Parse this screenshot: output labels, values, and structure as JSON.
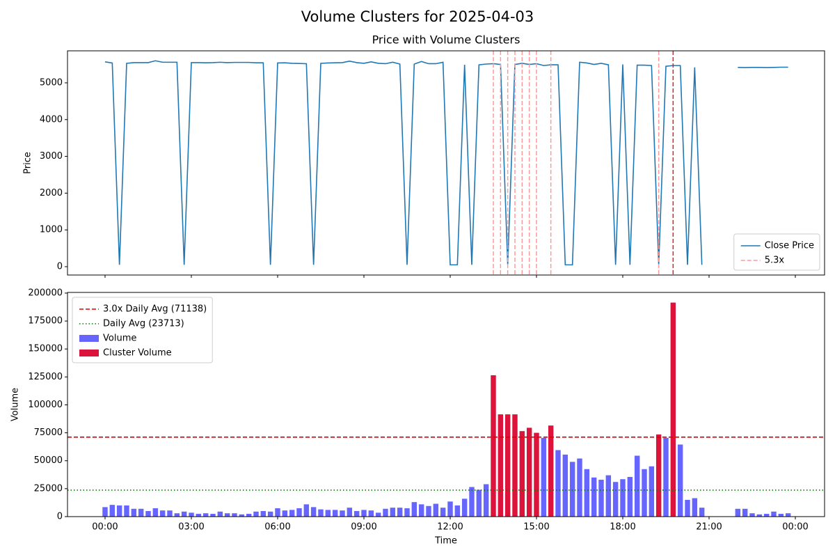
{
  "title": "Volume Clusters for 2025-04-03",
  "chart_data": [
    {
      "type": "line",
      "title": "Price with Volume Clusters",
      "y_label": "Price",
      "x": [
        0,
        0.25,
        0.5,
        0.75,
        1,
        1.25,
        1.5,
        1.75,
        2,
        2.25,
        2.5,
        2.75,
        3,
        3.25,
        3.5,
        3.75,
        4,
        4.25,
        4.5,
        4.75,
        5,
        5.25,
        5.5,
        5.75,
        6,
        6.25,
        6.5,
        6.75,
        7,
        7.25,
        7.5,
        7.75,
        8,
        8.25,
        8.5,
        8.75,
        9,
        9.25,
        9.5,
        9.75,
        10,
        10.25,
        10.5,
        10.75,
        11,
        11.25,
        11.5,
        11.75,
        12,
        12.25,
        12.5,
        12.75,
        13,
        13.25,
        13.5,
        13.75,
        14,
        14.25,
        14.5,
        14.75,
        15,
        15.25,
        15.5,
        15.75,
        16,
        16.25,
        16.5,
        16.75,
        17,
        17.25,
        17.5,
        17.75,
        18,
        18.25,
        18.5,
        18.75,
        19,
        19.25,
        19.5,
        19.75,
        20,
        20.25,
        20.5,
        20.75,
        21,
        21.25,
        21.5,
        21.75,
        22,
        22.25,
        22.5,
        22.75,
        23,
        23.25,
        23.5,
        23.75
      ],
      "series": [
        {
          "name": "Close Price",
          "color": "#1f77b4",
          "values": [
            5570,
            5540,
            50,
            5530,
            5550,
            5550,
            5550,
            5600,
            5560,
            5560,
            5560,
            50,
            5550,
            5550,
            5545,
            5550,
            5560,
            5550,
            5555,
            5555,
            5555,
            5545,
            5545,
            50,
            5540,
            5545,
            5530,
            5525,
            5520,
            50,
            5530,
            5540,
            5545,
            5550,
            5590,
            5550,
            5530,
            5570,
            5530,
            5520,
            5560,
            5510,
            50,
            5510,
            5580,
            5520,
            5520,
            5560,
            50,
            50,
            5490,
            50,
            5490,
            5510,
            5520,
            5500,
            50,
            5500,
            5530,
            5500,
            5520,
            5470,
            5490,
            5490,
            50,
            50,
            5560,
            5540,
            5500,
            5530,
            5490,
            50,
            5500,
            50,
            5480,
            5480,
            5470,
            50,
            5450,
            5470,
            5470,
            50,
            5420,
            50,
            null,
            null,
            null,
            null,
            5420,
            5415,
            5420,
            5420,
            5415,
            5420,
            5425,
            5425
          ]
        }
      ],
      "vlines": {
        "name": "5.3x",
        "x": [
          13.5,
          13.75,
          14,
          14.25,
          14.5,
          14.75,
          15,
          15.5,
          19.25,
          19.75
        ],
        "colors": [
          "#ff9999",
          "#ff9999",
          "#ff9999",
          "#ff9999",
          "#ff9999",
          "#ff9999",
          "#ff9999",
          "#ff9999",
          "#ff9999",
          "#e02020"
        ]
      },
      "xlim": [
        -1.306,
        25.016
      ],
      "ylim": [
        -227,
        5870
      ],
      "xticks": [
        0,
        3,
        6,
        9,
        12,
        15,
        18,
        21,
        24
      ],
      "yticks": [
        0,
        1000,
        2000,
        3000,
        4000,
        5000
      ],
      "legend": "lower right"
    },
    {
      "type": "bar",
      "x_label": "Time",
      "y_label": "Volume",
      "x": [
        0,
        0.25,
        0.5,
        0.75,
        1,
        1.25,
        1.5,
        1.75,
        2,
        2.25,
        2.5,
        2.75,
        3,
        3.25,
        3.5,
        3.75,
        4,
        4.25,
        4.5,
        4.75,
        5,
        5.25,
        5.5,
        5.75,
        6,
        6.25,
        6.5,
        6.75,
        7,
        7.25,
        7.5,
        7.75,
        8,
        8.25,
        8.5,
        8.75,
        9,
        9.25,
        9.5,
        9.75,
        10,
        10.25,
        10.5,
        10.75,
        11,
        11.25,
        11.5,
        11.75,
        12,
        12.25,
        12.5,
        12.75,
        13,
        13.25,
        13.5,
        13.75,
        14,
        14.25,
        14.5,
        14.75,
        15,
        15.25,
        15.5,
        15.75,
        16,
        16.25,
        16.5,
        16.75,
        17,
        17.25,
        17.5,
        17.75,
        18,
        18.25,
        18.5,
        18.75,
        19,
        19.25,
        19.5,
        19.75,
        20,
        20.25,
        20.5,
        20.75,
        21,
        21.25,
        21.5,
        21.75,
        22,
        22.25,
        22.5,
        22.75,
        23,
        23.25,
        23.5,
        23.75
      ],
      "series": [
        {
          "name": "Volume",
          "color": "#6666ff",
          "values": [
            8500,
            10500,
            10000,
            10000,
            7000,
            7000,
            5000,
            7500,
            5500,
            5500,
            3000,
            4500,
            3500,
            2500,
            3000,
            2500,
            4500,
            3000,
            3000,
            2000,
            2500,
            4500,
            5000,
            4500,
            7500,
            5500,
            6000,
            7500,
            11000,
            8500,
            6500,
            6000,
            6000,
            5500,
            8000,
            5000,
            6000,
            5500,
            3500,
            7000,
            8000,
            8000,
            7500,
            13000,
            11000,
            9500,
            11500,
            8000,
            13500,
            10000,
            16000,
            26500,
            24000,
            29000,
            null,
            null,
            null,
            null,
            null,
            null,
            null,
            70500,
            null,
            59500,
            55500,
            49000,
            52000,
            42500,
            35000,
            33000,
            37000,
            31000,
            33500,
            35500,
            54500,
            42500,
            45000,
            null,
            70500,
            null,
            64500,
            15000,
            16500,
            8000,
            null,
            null,
            null,
            null,
            7000,
            7000,
            3000,
            2000,
            2500,
            4500,
            2500,
            3000
          ]
        },
        {
          "name": "Cluster Volume",
          "color": "#dc143c",
          "values": [
            null,
            null,
            null,
            null,
            null,
            null,
            null,
            null,
            null,
            null,
            null,
            null,
            null,
            null,
            null,
            null,
            null,
            null,
            null,
            null,
            null,
            null,
            null,
            null,
            null,
            null,
            null,
            null,
            null,
            null,
            null,
            null,
            null,
            null,
            null,
            null,
            null,
            null,
            null,
            null,
            null,
            null,
            null,
            null,
            null,
            null,
            null,
            null,
            null,
            null,
            null,
            null,
            null,
            null,
            126500,
            91500,
            91500,
            91500,
            76500,
            79500,
            75000,
            null,
            81500,
            null,
            null,
            null,
            null,
            null,
            null,
            null,
            null,
            null,
            null,
            null,
            null,
            null,
            null,
            73500,
            null,
            191500,
            null,
            null,
            null,
            null,
            null,
            null,
            null,
            null,
            null,
            null,
            null,
            null,
            null,
            null,
            null,
            null
          ]
        }
      ],
      "hlines": [
        {
          "name": "3.0x Daily Avg (71138)",
          "value": 71138,
          "color": "#dd0000",
          "style": "dashed"
        },
        {
          "name": "Daily Avg (23713)",
          "value": 23713,
          "color": "#008000",
          "style": "dotted"
        }
      ],
      "xlim": [
        -1.306,
        25.016
      ],
      "ylim": [
        0,
        200600
      ],
      "xticks": [
        {
          "value": 0,
          "label": "00:00"
        },
        {
          "value": 3,
          "label": "03:00"
        },
        {
          "value": 6,
          "label": "06:00"
        },
        {
          "value": 9,
          "label": "09:00"
        },
        {
          "value": 12,
          "label": "12:00"
        },
        {
          "value": 15,
          "label": "15:00"
        },
        {
          "value": 18,
          "label": "18:00"
        },
        {
          "value": 21,
          "label": "21:00"
        },
        {
          "value": 24,
          "label": "00:00"
        }
      ],
      "yticks": [
        0,
        25000,
        50000,
        75000,
        100000,
        125000,
        150000,
        175000,
        200000
      ],
      "legend": "upper left"
    }
  ]
}
